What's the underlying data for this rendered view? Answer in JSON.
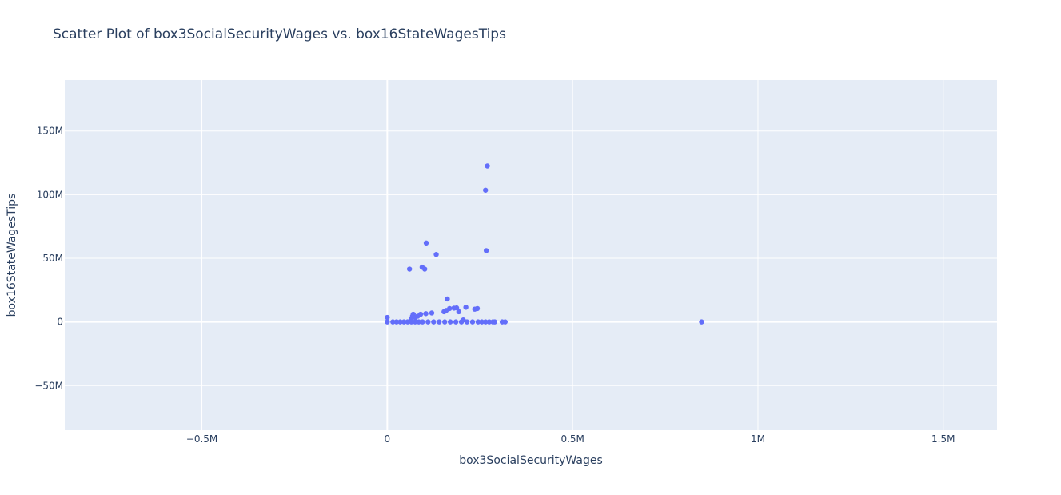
{
  "chart_data": {
    "type": "scatter",
    "title": "Scatter Plot of box3SocialSecurityWages vs. box16StateWagesTips",
    "xlabel": "box3SocialSecurityWages",
    "ylabel": "box16StateWagesTips",
    "xlim": [
      -870000,
      1645000
    ],
    "ylim": [
      -85000000,
      190000000
    ],
    "x_ticks": [
      -500000,
      0,
      500000,
      1000000,
      1500000
    ],
    "x_tick_labels": [
      "−0.5M",
      "0",
      "0.5M",
      "1M",
      "1.5M"
    ],
    "y_ticks": [
      -50000000,
      0,
      50000000,
      100000000,
      150000000
    ],
    "y_tick_labels": [
      "−50M",
      "0",
      "50M",
      "100M",
      "150M"
    ],
    "grid": true,
    "colors": {
      "plot_bg": "#e5ecf6",
      "grid": "#ffffff",
      "marker": "#636efa",
      "text": "#2a3f5f"
    },
    "series": [
      {
        "x": [
          270000,
          265000,
          105000,
          267000,
          132000,
          94000,
          60000,
          101000,
          162000,
          187000,
          168000,
          180000,
          243000,
          236000,
          212000,
          153000,
          159000,
          193000,
          120000,
          104000,
          90000,
          70000,
          68000,
          82000,
          76000,
          65000,
          0,
          0,
          15000,
          25000,
          35000,
          45000,
          55000,
          65000,
          75000,
          85000,
          95000,
          110000,
          125000,
          140000,
          155000,
          170000,
          185000,
          200000,
          205000,
          215000,
          230000,
          245000,
          255000,
          265000,
          275000,
          285000,
          290000,
          310000,
          318000,
          848000
        ],
        "y": [
          122500000,
          103500000,
          62000000,
          56000000,
          53000000,
          43000000,
          41500000,
          41500000,
          18000000,
          11000000,
          10500000,
          10800000,
          10500000,
          10000000,
          11500000,
          8000000,
          9000000,
          8000000,
          7000000,
          6500000,
          6000000,
          6000000,
          4500000,
          4500000,
          3500000,
          2500000,
          3500000,
          0,
          0,
          0,
          0,
          0,
          0,
          0,
          0,
          0,
          0,
          0,
          0,
          0,
          0,
          0,
          0,
          0,
          1500000,
          0,
          0,
          0,
          0,
          0,
          0,
          0,
          0,
          0,
          0,
          0
        ]
      }
    ]
  }
}
